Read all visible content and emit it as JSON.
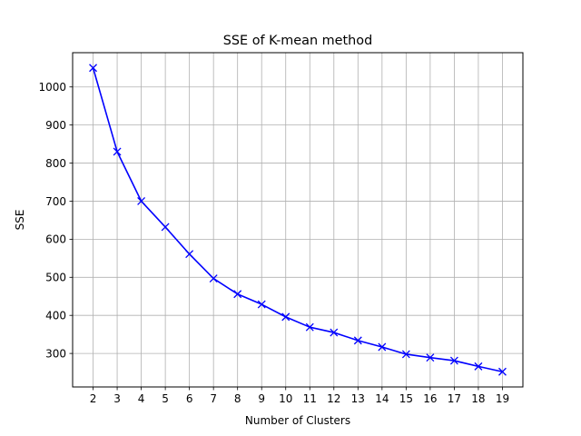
{
  "chart_data": {
    "type": "line",
    "title": "SSE of K-mean method",
    "xlabel": "Number of Clusters",
    "ylabel": "SSE",
    "x": [
      2,
      3,
      4,
      5,
      6,
      7,
      8,
      9,
      10,
      11,
      12,
      13,
      14,
      15,
      16,
      17,
      18,
      19
    ],
    "series": [
      {
        "values": [
          1050,
          830,
          700,
          632,
          561,
          497,
          456,
          429,
          396,
          369,
          355,
          334,
          317,
          298,
          289,
          281,
          266,
          252
        ],
        "color": "#0000ff",
        "marker": "x"
      }
    ],
    "xlim": [
      1.15,
      19.85
    ],
    "ylim": [
      212,
      1090
    ],
    "xticks": [
      "2",
      "3",
      "4",
      "5",
      "6",
      "7",
      "8",
      "9",
      "10",
      "11",
      "12",
      "13",
      "14",
      "15",
      "16",
      "17",
      "18",
      "19"
    ],
    "yticks": [
      "300",
      "400",
      "500",
      "600",
      "700",
      "800",
      "900",
      "1000"
    ],
    "grid": true,
    "grid_color": "#b0b0b0"
  }
}
